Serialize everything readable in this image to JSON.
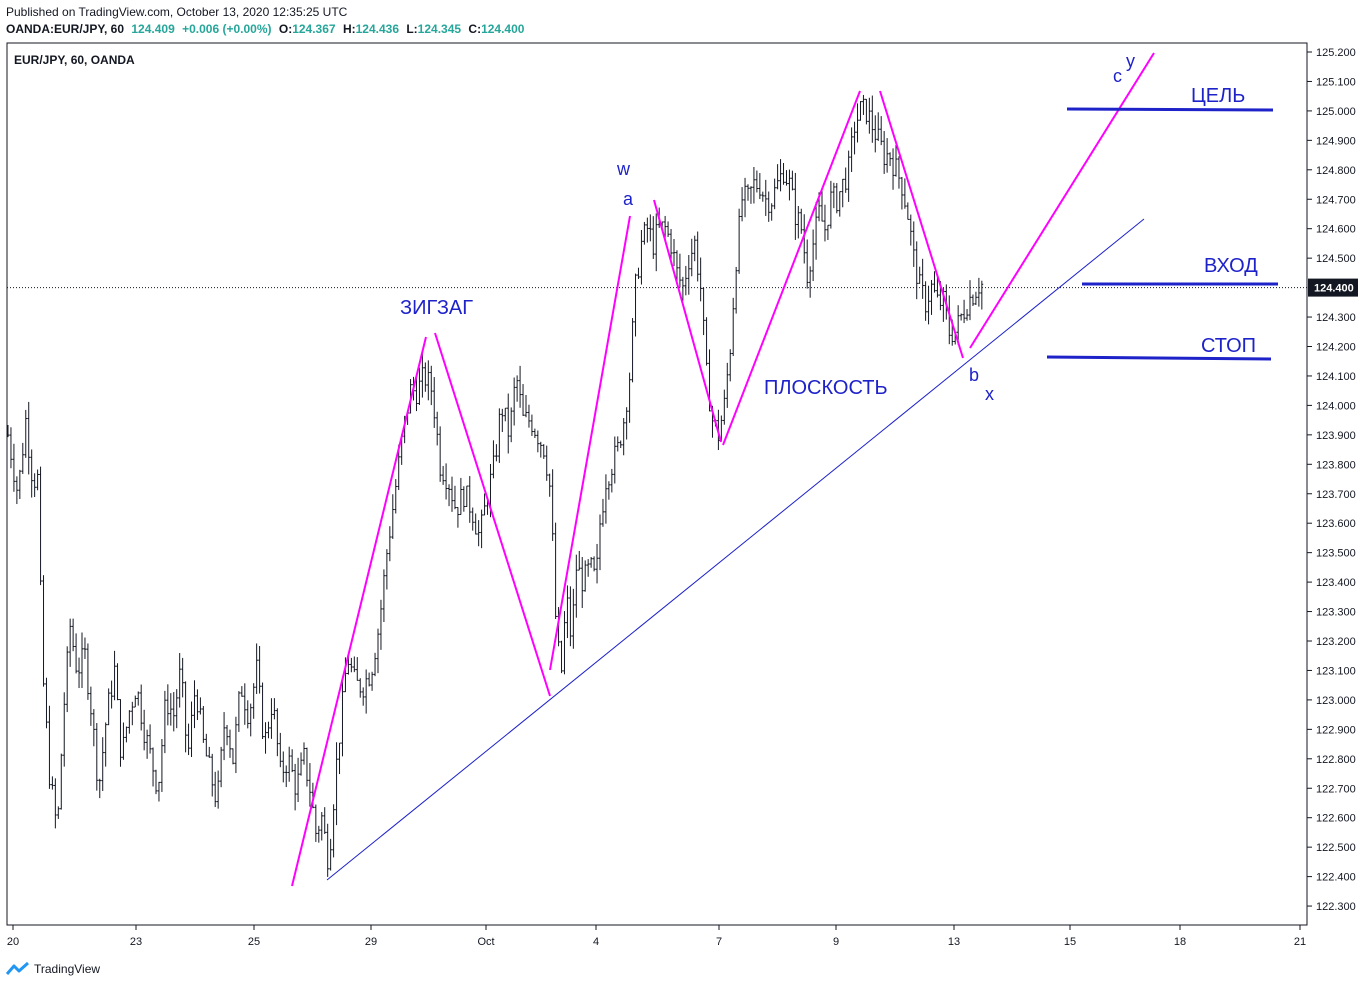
{
  "header": {
    "published": "Published on TradingView.com, October 13, 2020 12:35:25 UTC",
    "symbol": "OANDA:EUR/JPY, 60",
    "last": "124.409",
    "change": "+0.006 (+0.00%)",
    "o_label": "O:",
    "o": "124.367",
    "h_label": "H:",
    "h": "124.436",
    "l_label": "L:",
    "l": "124.345",
    "c_label": "C:",
    "c": "124.400"
  },
  "footer": {
    "brand": "TradingView",
    "logo_icon": "tradingview-logo-icon"
  },
  "colors": {
    "candles": "#131722",
    "waves": "#ff00ff",
    "trendline": "#1e22c9",
    "levels": "#1e22c9",
    "labels": "#1e22c9",
    "price_tag": "#131722"
  },
  "chart_data": {
    "type": "ohlc-bars",
    "legend": "EUR/JPY, 60, OANDA",
    "ylim": [
      122.25,
      125.25
    ],
    "y_ticks": [
      "125.200",
      "125.100",
      "125.000",
      "124.900",
      "124.800",
      "124.700",
      "124.600",
      "124.500",
      "124.300",
      "124.200",
      "124.100",
      "124.000",
      "123.900",
      "123.800",
      "123.700",
      "123.600",
      "123.500",
      "123.400",
      "123.300",
      "123.200",
      "123.100",
      "123.000",
      "122.900",
      "122.800",
      "122.700",
      "122.600",
      "122.500",
      "122.400",
      "122.300"
    ],
    "x_ticks": [
      "20",
      "23",
      "25",
      "29",
      "Oct",
      "4",
      "7",
      "9",
      "13",
      "15",
      "18",
      "21"
    ],
    "last_price": "124.400",
    "price_path": [
      [
        0,
        123.9
      ],
      [
        10,
        123.7
      ],
      [
        18,
        123.95
      ],
      [
        25,
        123.75
      ],
      [
        30,
        123.75
      ],
      [
        35,
        123.1
      ],
      [
        42,
        122.75
      ],
      [
        50,
        122.55
      ],
      [
        56,
        122.95
      ],
      [
        63,
        123.25
      ],
      [
        70,
        123.1
      ],
      [
        78,
        123.15
      ],
      [
        85,
        122.95
      ],
      [
        92,
        122.7
      ],
      [
        100,
        122.95
      ],
      [
        108,
        123.1
      ],
      [
        115,
        122.8
      ],
      [
        122,
        122.95
      ],
      [
        130,
        123.05
      ],
      [
        138,
        122.9
      ],
      [
        145,
        122.8
      ],
      [
        152,
        122.7
      ],
      [
        160,
        123.0
      ],
      [
        168,
        122.95
      ],
      [
        175,
        123.1
      ],
      [
        182,
        122.8
      ],
      [
        190,
        123.05
      ],
      [
        198,
        122.85
      ],
      [
        205,
        122.75
      ],
      [
        212,
        122.65
      ],
      [
        220,
        122.95
      ],
      [
        228,
        122.8
      ],
      [
        236,
        123.05
      ],
      [
        244,
        122.95
      ],
      [
        252,
        123.1
      ],
      [
        260,
        122.85
      ],
      [
        268,
        123.0
      ],
      [
        276,
        122.75
      ],
      [
        284,
        122.8
      ],
      [
        292,
        122.7
      ],
      [
        300,
        122.8
      ],
      [
        306,
        122.7
      ],
      [
        312,
        122.55
      ],
      [
        318,
        122.6
      ],
      [
        325,
        122.45
      ],
      [
        332,
        122.75
      ],
      [
        338,
        122.95
      ],
      [
        344,
        123.15
      ],
      [
        352,
        123.05
      ],
      [
        360,
        123.05
      ],
      [
        368,
        123.1
      ],
      [
        376,
        123.25
      ],
      [
        384,
        123.5
      ],
      [
        392,
        123.7
      ],
      [
        400,
        123.9
      ],
      [
        408,
        124.05
      ],
      [
        415,
        124.05
      ],
      [
        422,
        124.1
      ],
      [
        430,
        124.05
      ],
      [
        438,
        123.8
      ],
      [
        446,
        123.75
      ],
      [
        454,
        123.65
      ],
      [
        462,
        123.7
      ],
      [
        470,
        123.65
      ],
      [
        478,
        123.55
      ],
      [
        486,
        123.7
      ],
      [
        493,
        123.8
      ],
      [
        500,
        124.0
      ],
      [
        508,
        123.9
      ],
      [
        515,
        124.1
      ],
      [
        522,
        123.95
      ],
      [
        530,
        123.95
      ],
      [
        537,
        123.9
      ],
      [
        544,
        123.85
      ],
      [
        550,
        123.7
      ],
      [
        556,
        123.2
      ],
      [
        561,
        123.1
      ],
      [
        566,
        123.35
      ],
      [
        571,
        123.2
      ],
      [
        576,
        123.45
      ],
      [
        583,
        123.4
      ],
      [
        590,
        123.45
      ],
      [
        596,
        123.4
      ],
      [
        600,
        123.6
      ],
      [
        606,
        123.75
      ],
      [
        612,
        123.8
      ],
      [
        618,
        123.85
      ],
      [
        624,
        123.95
      ],
      [
        630,
        124.1
      ],
      [
        636,
        124.4
      ],
      [
        642,
        124.55
      ],
      [
        648,
        124.6
      ],
      [
        654,
        124.55
      ],
      [
        660,
        124.6
      ],
      [
        666,
        124.6
      ],
      [
        672,
        124.55
      ],
      [
        678,
        124.45
      ],
      [
        684,
        124.4
      ],
      [
        690,
        124.5
      ],
      [
        696,
        124.55
      ],
      [
        702,
        124.4
      ],
      [
        708,
        124.1
      ],
      [
        714,
        123.95
      ],
      [
        720,
        123.9
      ],
      [
        726,
        124.0
      ],
      [
        732,
        124.2
      ],
      [
        738,
        124.5
      ],
      [
        744,
        124.7
      ],
      [
        750,
        124.7
      ],
      [
        756,
        124.75
      ],
      [
        762,
        124.75
      ],
      [
        768,
        124.7
      ],
      [
        774,
        124.7
      ],
      [
        780,
        124.75
      ],
      [
        786,
        124.8
      ],
      [
        792,
        124.75
      ],
      [
        798,
        124.65
      ],
      [
        804,
        124.6
      ],
      [
        810,
        124.45
      ],
      [
        816,
        124.55
      ],
      [
        822,
        124.65
      ],
      [
        828,
        124.6
      ],
      [
        834,
        124.7
      ],
      [
        840,
        124.7
      ],
      [
        846,
        124.75
      ],
      [
        852,
        124.8
      ],
      [
        858,
        124.95
      ],
      [
        864,
        125.0
      ],
      [
        870,
        125.0
      ],
      [
        876,
        124.95
      ],
      [
        882,
        124.9
      ],
      [
        888,
        124.85
      ],
      [
        894,
        124.85
      ],
      [
        900,
        124.8
      ],
      [
        906,
        124.75
      ],
      [
        912,
        124.65
      ],
      [
        918,
        124.5
      ],
      [
        924,
        124.4
      ],
      [
        930,
        124.35
      ],
      [
        936,
        124.4
      ],
      [
        942,
        124.35
      ],
      [
        948,
        124.35
      ],
      [
        954,
        124.25
      ],
      [
        960,
        124.25
      ],
      [
        966,
        124.3
      ],
      [
        972,
        124.35
      ],
      [
        978,
        124.38
      ],
      [
        984,
        124.41
      ]
    ],
    "annotations": {
      "zigzag_label": "ЗИГЗАГ",
      "flat_label": "ПЛОСКОСТЬ",
      "wave_w": "w",
      "wave_a": "a",
      "wave_b": "b",
      "wave_x": "x",
      "wave_c": "c",
      "wave_y": "y",
      "target_label": "ЦЕЛЬ",
      "target_price": 125.0,
      "entry_label": "ВХОД",
      "entry_price": 124.4,
      "stop_label": "СТОП",
      "stop_price": 124.15
    }
  }
}
